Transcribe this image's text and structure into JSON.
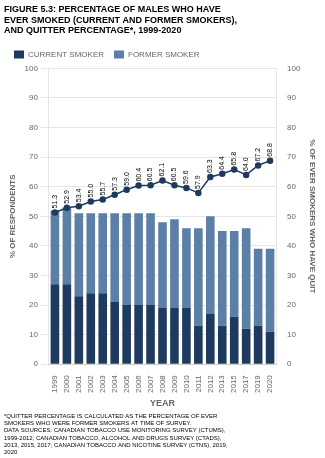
{
  "chart_data": {
    "type": "bar",
    "title": [
      "FIGURE 5.3: PERCENTAGE OF MALES WHO HAVE",
      "EVER SMOKED (CURRENT AND FORMER SMOKERS),",
      "AND QUITTER PERCENTAGE*, 1999-2020"
    ],
    "footnote": [
      "*QUITTER PERCENTAGE IS CALCULATED AS THE PERCENTAGE OF EVER",
      "SMOKERS WHO WERE FORMER SMOKERS AT TIME OF SURVEY.",
      "DATA SOURCES: CANADIAN TOBACCO USE MONITORING SURVEY (CTUMS),",
      "1999-2012; CANADIAN TOBACCO, ALCOHOL AND DRUGS SURVEY (CTADS),",
      "2013, 2015, 2017; CANADIAN TOBACCO AND NICOTINE SURVEY (CTNS), 2019,",
      "2020"
    ],
    "categories": [
      "1999",
      "2000",
      "2001",
      "2002",
      "2003",
      "2004",
      "2005",
      "2006",
      "2007",
      "2008",
      "2009",
      "2010",
      "2011",
      "2012",
      "2013",
      "2015",
      "2017",
      "2019",
      "2020"
    ],
    "series": [
      {
        "name": "CURRENT SMOKER",
        "type": "bar",
        "color": "#1e3a5f",
        "values": [
          27,
          27,
          23,
          24,
          24,
          21,
          20,
          20,
          20,
          19,
          19,
          19,
          13,
          17,
          13,
          16,
          12,
          13,
          11
        ]
      },
      {
        "name": "FORMER SMOKER",
        "type": "bar",
        "color": "#5b7fa6",
        "values": [
          25,
          26,
          28,
          27,
          27,
          30,
          31,
          31,
          31,
          29,
          30,
          27,
          33,
          33,
          32,
          29,
          34,
          26,
          28
        ]
      },
      {
        "type": "line",
        "axis": "y2",
        "color": "#1e3a5f",
        "marker": "circle",
        "data_labels": true,
        "values": [
          51.3,
          52.9,
          53.4,
          55.0,
          55.7,
          57.3,
          59.0,
          60.4,
          60.5,
          62.1,
          60.5,
          59.6,
          57.9,
          63.3,
          64.4,
          65.8,
          64.0,
          67.2,
          68.8
        ],
        "value_labels": [
          "51.3",
          "52.9",
          "53.4",
          "55.0",
          "55.7",
          "57.3",
          "59.0",
          "60.4",
          "60.5",
          "62.1",
          "60.5",
          "59.6",
          "57.9",
          "63.3",
          "64.4",
          "65.8",
          "64.0",
          "67.2",
          "68.8"
        ]
      }
    ],
    "xlabel": "YEAR",
    "ylabel": "% OF RESPONDENTS",
    "y2label": "% OF EVER SMOKERS WHO HAVE QUIT",
    "ylim": [
      0,
      100
    ],
    "yticks": [
      0,
      10,
      20,
      30,
      40,
      50,
      60,
      70,
      80,
      90,
      100
    ],
    "y2lim": [
      0,
      100
    ],
    "y2ticks": [
      0,
      10,
      20,
      30,
      40,
      50,
      60,
      70,
      80,
      90,
      100
    ],
    "stacked": true,
    "grid": true,
    "legend": "upper left"
  }
}
